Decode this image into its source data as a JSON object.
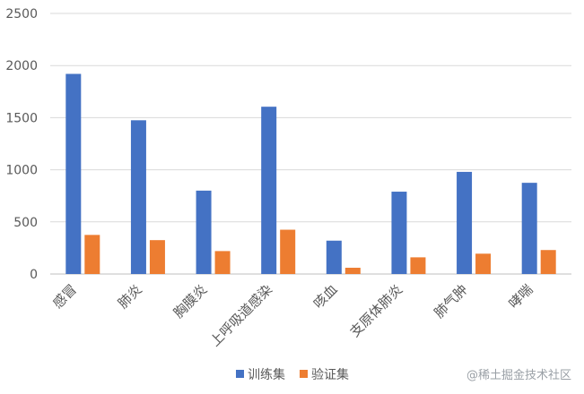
{
  "chart_data": {
    "type": "bar",
    "categories": [
      "感冒",
      "肺炎",
      "胸膜炎",
      "上呼吸道感染",
      "咳血",
      "支原体肺炎",
      "肺气肿",
      "哮喘"
    ],
    "series": [
      {
        "name": "训练集",
        "color": "#4472c4",
        "values": [
          1920,
          1475,
          800,
          1605,
          320,
          790,
          980,
          875
        ]
      },
      {
        "name": "验证集",
        "color": "#ed7d31",
        "values": [
          375,
          325,
          220,
          425,
          60,
          160,
          195,
          230
        ]
      }
    ],
    "y_ticks": [
      "0",
      "500",
      "1000",
      "1500",
      "2000",
      "2500"
    ],
    "ylim": [
      0,
      2500
    ],
    "grid": true,
    "legend_position": "bottom-center",
    "title": "",
    "xlabel": "",
    "ylabel": ""
  },
  "watermark": "@稀土掘金技术社区"
}
